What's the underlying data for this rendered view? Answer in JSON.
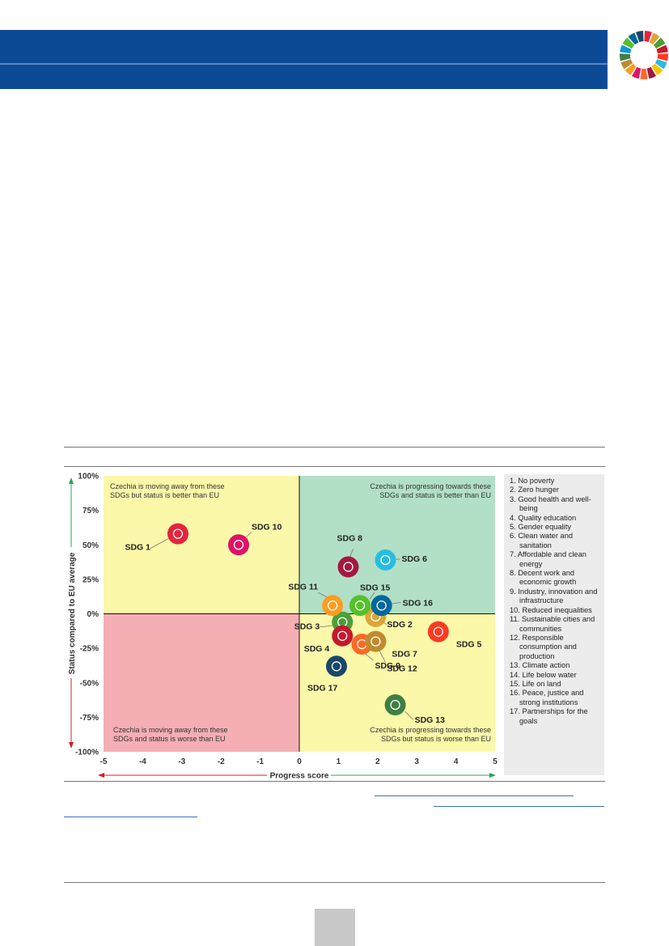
{
  "colors": {
    "header_band": "#0d4a96",
    "quadrant_top_left": "#fbf8a9",
    "quadrant_top_right": "#b1e0c6",
    "quadrant_bottom_left": "#f5aeb4",
    "quadrant_bottom_right": "#fbf8a9",
    "arrow_green": "#2aa44a",
    "arrow_red": "#d42020"
  },
  "chart_data": {
    "type": "scatter",
    "xlabel": "Progress score",
    "ylabel": "Status compared to EU average",
    "xlim": [
      -5,
      5
    ],
    "ylim": [
      -100,
      100
    ],
    "x_ticks": [
      "-5",
      "-4",
      "-3",
      "-2",
      "-1",
      "0",
      "1",
      "2",
      "3",
      "4",
      "5"
    ],
    "y_ticks": [
      "100%",
      "75%",
      "50%",
      "25%",
      "0%",
      "-25%",
      "-50%",
      "-75%",
      "-100%"
    ],
    "quadrant_labels": {
      "top_left": [
        "Czechia is moving away from these",
        "SDGs but status is better than EU"
      ],
      "top_right": [
        "Czechia is progressing towards these",
        "SDGs and status is better than EU"
      ],
      "bottom_left": [
        "Czechia is moving away from these",
        "SDGs and status is worse than EU"
      ],
      "bottom_right": [
        "Czechia is progressing towards these",
        "SDGs but status is worse than EU"
      ]
    },
    "points": [
      {
        "label": "SDG 1",
        "x": -3.1,
        "y": 58,
        "color": "#e5243b",
        "icon": "family-icon"
      },
      {
        "label": "SDG 2",
        "x": 1.95,
        "y": -2,
        "color": "#dda63a",
        "icon": "bowl-icon"
      },
      {
        "label": "SDG 3",
        "x": 1.1,
        "y": -6,
        "color": "#4c9f38",
        "icon": "heartbeat-icon"
      },
      {
        "label": "SDG 4",
        "x": 1.1,
        "y": -16,
        "color": "#c5192d",
        "icon": "book-icon"
      },
      {
        "label": "SDG 5",
        "x": 3.55,
        "y": -13,
        "color": "#ff3a21",
        "icon": "gender-icon"
      },
      {
        "label": "SDG 6",
        "x": 2.2,
        "y": 39,
        "color": "#26bde2",
        "icon": "water-drop-icon"
      },
      {
        "label": "SDG 7",
        "x": 1.95,
        "y": -20,
        "color": "#fcc30b",
        "icon": "sun-power-icon"
      },
      {
        "label": "SDG 8",
        "x": 1.25,
        "y": 34,
        "color": "#a21942",
        "icon": "growth-chart-icon"
      },
      {
        "label": "SDG 9",
        "x": 1.6,
        "y": -22,
        "color": "#fd6925",
        "icon": "cubes-icon"
      },
      {
        "label": "SDG 10",
        "x": -1.55,
        "y": 50,
        "color": "#dd1367",
        "icon": "equality-icon"
      },
      {
        "label": "SDG 11",
        "x": 0.85,
        "y": 6,
        "color": "#fd9d24",
        "icon": "city-icon"
      },
      {
        "label": "SDG 12",
        "x": 1.95,
        "y": -20,
        "color": "#bf8b2e",
        "icon": "infinity-icon"
      },
      {
        "label": "SDG 13",
        "x": 2.45,
        "y": -66,
        "color": "#3f7e44",
        "icon": "eye-earth-icon"
      },
      {
        "label": "SDG 15",
        "x": 1.55,
        "y": 6,
        "color": "#56c02b",
        "icon": "tree-icon"
      },
      {
        "label": "SDG 16",
        "x": 2.1,
        "y": 6,
        "color": "#00689d",
        "icon": "dove-icon"
      },
      {
        "label": "SDG 17",
        "x": 0.95,
        "y": -38,
        "color": "#19486a",
        "icon": "rings-icon"
      }
    ]
  },
  "legend": {
    "entries": [
      [
        "1. No poverty"
      ],
      [
        "2. Zero hunger"
      ],
      [
        "3. Good health and well-",
        "being"
      ],
      [
        "4. Quality education"
      ],
      [
        "5. Gender equality"
      ],
      [
        "6. Clean water and",
        "sanitation"
      ],
      [
        "7. Affordable and clean",
        "energy"
      ],
      [
        "8. Decent work and",
        "economic growth"
      ],
      [
        "9. Industry, innovation and",
        "infrastructure"
      ],
      [
        "10. Reduced inequalities"
      ],
      [
        "11. Sustainable cities and",
        "communities"
      ],
      [
        "12. Responsible",
        "consumption and",
        "production"
      ],
      [
        "13. Climate action"
      ],
      [
        "14. Life below water"
      ],
      [
        "15. Life on land"
      ],
      [
        "16. Peace, justice and",
        "strong institutions"
      ],
      [
        "17. Partnerships for the",
        "goals"
      ]
    ]
  }
}
